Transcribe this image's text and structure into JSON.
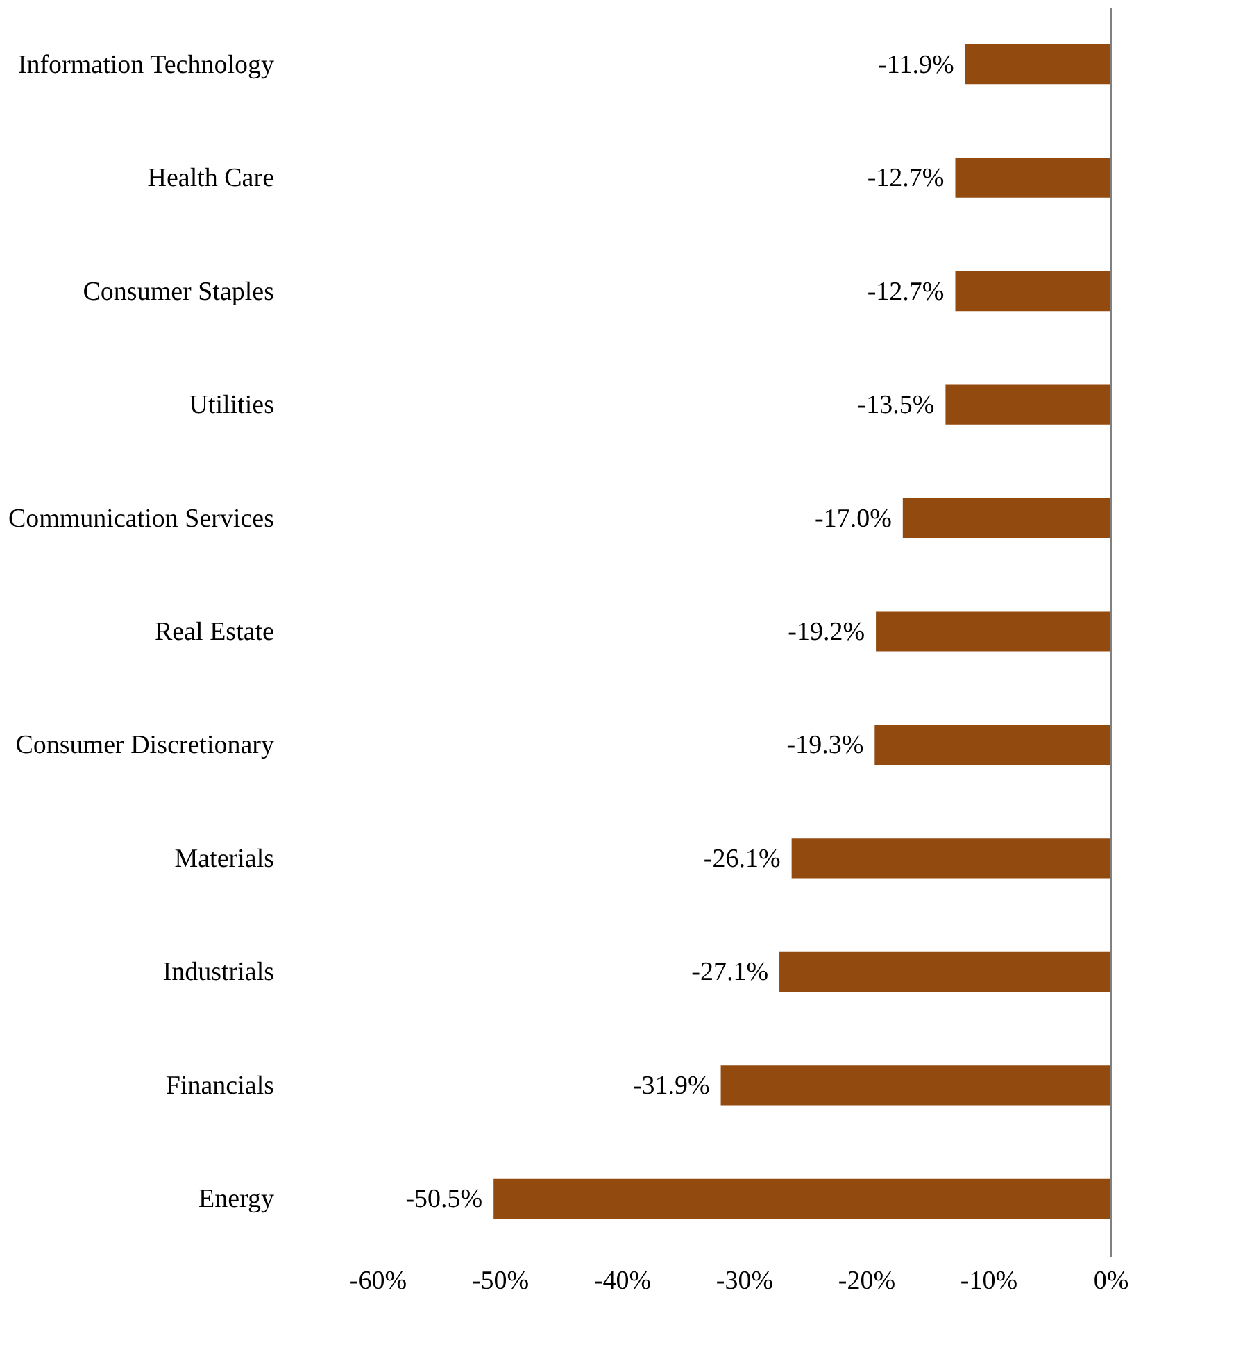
{
  "chart_data": {
    "type": "bar",
    "orientation": "horizontal",
    "categories": [
      "Information Technology",
      "Health Care",
      "Consumer Staples",
      "Utilities",
      "Communication Services",
      "Real Estate",
      "Consumer Discretionary",
      "Materials",
      "Industrials",
      "Financials",
      "Energy"
    ],
    "values": [
      -11.9,
      -12.7,
      -12.7,
      -13.5,
      -17.0,
      -19.2,
      -19.3,
      -26.1,
      -27.1,
      -31.9,
      -50.5
    ],
    "value_labels": [
      "-11.9%",
      "-12.7%",
      "-12.7%",
      "-13.5%",
      "-17.0%",
      "-19.2%",
      "-19.3%",
      "-26.1%",
      "-27.1%",
      "-31.9%",
      "-50.5%"
    ],
    "color": "#934a0f",
    "xlim": [
      -60,
      0
    ],
    "xticks": [
      {
        "value": -60,
        "label": "-60%"
      },
      {
        "value": -50,
        "label": "-50%"
      },
      {
        "value": -40,
        "label": "-40%"
      },
      {
        "value": -30,
        "label": "-30%"
      },
      {
        "value": -20,
        "label": "-20%"
      },
      {
        "value": -10,
        "label": "-10%"
      },
      {
        "value": 0,
        "label": "0%"
      }
    ],
    "grid": false
  }
}
